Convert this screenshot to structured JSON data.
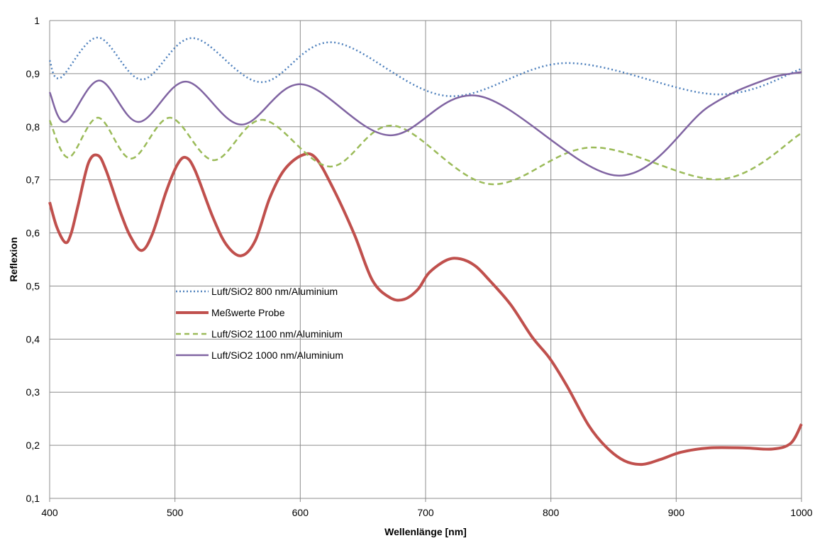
{
  "chart_data": {
    "type": "line",
    "title": "",
    "xlabel": "Wellenlänge [nm]",
    "ylabel": "Reflexion",
    "xlim": [
      400,
      1000
    ],
    "ylim": [
      0.1,
      1.0
    ],
    "xticks": [
      400,
      500,
      600,
      700,
      800,
      900,
      1000
    ],
    "yticks": [
      0.1,
      0.2,
      0.3,
      0.4,
      0.5,
      0.6,
      0.7,
      0.8,
      0.9,
      1.0
    ],
    "ytick_labels": [
      "0,1",
      "0,2",
      "0,3",
      "0,4",
      "0,5",
      "0,6",
      "0,7",
      "0,8",
      "0,9",
      "1"
    ],
    "xtick_labels": [
      "400",
      "500",
      "600",
      "700",
      "800",
      "900",
      "1000"
    ],
    "grid": true,
    "legend_position": "center-left",
    "series": [
      {
        "name": "Luft/SiO2 800 nm/Aluminium",
        "color": "#4F81BD",
        "style": "dotted",
        "x": [
          400,
          408.5,
          438.5,
          473.6,
          514,
          568.7,
          626,
          717,
          813,
          932,
          1000
        ],
        "y": [
          0.925,
          0.892,
          0.968,
          0.889,
          0.967,
          0.884,
          0.959,
          0.858,
          0.92,
          0.861,
          0.909
        ]
      },
      {
        "name": "Meßwerte Probe",
        "color": "#C0504D",
        "style": "solid-thick",
        "x": [
          400,
          405.7,
          412.5,
          417,
          422.6,
          431,
          438.5,
          445,
          456.6,
          465,
          473.6,
          482,
          493,
          502,
          508.7,
          516,
          530,
          541,
          552.8,
          564,
          575.5,
          587,
          601,
          612,
          626,
          643,
          657.5,
          671.7,
          683,
          694,
          702.8,
          717,
          728,
          739.6,
          750.9,
          767.9,
          785,
          799,
          813,
          830,
          844,
          858.5,
          872.6,
          887,
          904,
          926,
          954.7,
          977,
          991.5,
          1000
        ],
        "y": [
          0.658,
          0.611,
          0.582,
          0.598,
          0.651,
          0.732,
          0.746,
          0.718,
          0.638,
          0.591,
          0.567,
          0.598,
          0.678,
          0.729,
          0.742,
          0.718,
          0.631,
          0.578,
          0.557,
          0.585,
          0.665,
          0.718,
          0.746,
          0.742,
          0.685,
          0.598,
          0.511,
          0.478,
          0.475,
          0.494,
          0.525,
          0.549,
          0.551,
          0.538,
          0.511,
          0.465,
          0.404,
          0.364,
          0.311,
          0.238,
          0.197,
          0.171,
          0.164,
          0.173,
          0.187,
          0.195,
          0.195,
          0.193,
          0.204,
          0.24
        ]
      },
      {
        "name": "Luft/SiO2 1100 nm/Aluminium",
        "color": "#9BBB59",
        "style": "dashed",
        "x": [
          400,
          415,
          438.5,
          465,
          496,
          531,
          570,
          623.6,
          674.5,
          751,
          833,
          935,
          1000
        ],
        "y": [
          0.812,
          0.742,
          0.817,
          0.74,
          0.817,
          0.737,
          0.813,
          0.725,
          0.802,
          0.692,
          0.761,
          0.701,
          0.788
        ]
      },
      {
        "name": "Luft/SiO2 1000 nm/Aluminium",
        "color": "#8064A2",
        "style": "solid",
        "x": [
          400,
          412.5,
          439.6,
          470.8,
          508.7,
          552.8,
          601,
          670.6,
          742.5,
          853,
          926,
          971.7,
          1000
        ],
        "y": [
          0.865,
          0.809,
          0.887,
          0.809,
          0.885,
          0.804,
          0.88,
          0.784,
          0.858,
          0.708,
          0.838,
          0.889,
          0.903
        ]
      }
    ]
  }
}
